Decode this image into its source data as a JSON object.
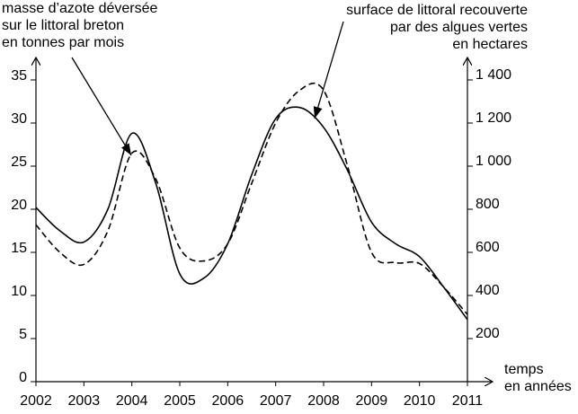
{
  "chart_data": {
    "type": "line",
    "y_label": [
      "masse d’azote déversée",
      "sur le littoral breton",
      "en tonnes par mois"
    ],
    "y2_label": [
      "surface de littoral recouverte",
      "par des algues vertes",
      "en hectares"
    ],
    "x_label": [
      "temps",
      "en années"
    ],
    "x": [
      2002,
      2002.5,
      2003,
      2003.5,
      2004,
      2004.5,
      2005,
      2005.5,
      2006,
      2006.5,
      2007,
      2007.5,
      2008,
      2008.5,
      2009,
      2009.5,
      2010,
      2010.5,
      2011
    ],
    "xlim": [
      2002,
      2011
    ],
    "xticks": [
      2002,
      2003,
      2004,
      2005,
      2006,
      2007,
      2008,
      2009,
      2010,
      2011
    ],
    "ylim": [
      0,
      35
    ],
    "yticks": [
      0,
      5,
      10,
      15,
      20,
      25,
      30,
      35
    ],
    "y2lim": [
      0,
      1400
    ],
    "y2ticks": [
      {
        "value": 200,
        "label": "200"
      },
      {
        "value": 400,
        "label": "400"
      },
      {
        "value": 600,
        "label": "600"
      },
      {
        "value": 800,
        "label": "800"
      },
      {
        "value": 1000,
        "label": "1 000"
      },
      {
        "value": 1200,
        "label": "1 200"
      },
      {
        "value": 1400,
        "label": "1 400"
      }
    ],
    "grid": false,
    "series": [
      {
        "color": "#000000",
        "line_style": "dashed",
        "values": [
          18.2,
          15,
          13.6,
          17.5,
          26.5,
          23.5,
          15.5,
          14,
          16,
          23,
          30,
          33.8,
          33.8,
          25,
          15,
          13.8,
          13.7,
          11,
          7.8
        ]
      },
      {
        "color": "#000000",
        "line_style": "solid",
        "axis": "y2",
        "values": [
          808,
          700,
          648,
          800,
          1152,
          920,
          500,
          480,
          640,
          960,
          1220,
          1272,
          1180,
          980,
          740,
          640,
          580,
          440,
          288
        ]
      }
    ]
  }
}
